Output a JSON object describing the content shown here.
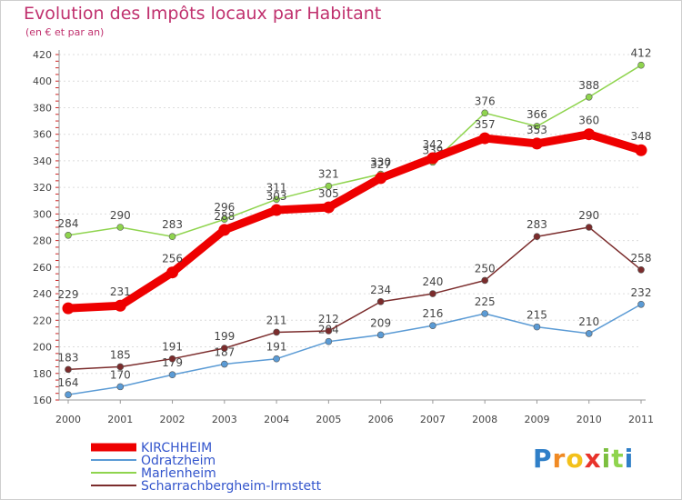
{
  "header": {
    "title": "Evolution des Impôts locaux par Habitant",
    "subtitle": "(en € et par an)"
  },
  "logo": {
    "letters": [
      "P",
      "r",
      "o",
      "x",
      "i",
      "t",
      "i"
    ]
  },
  "chart_data": {
    "type": "line",
    "title": "Evolution des Impôts locaux par Habitant",
    "subtitle": "(en € et par an)",
    "xlabel": "",
    "ylabel": "",
    "ylim": [
      160,
      420
    ],
    "yticks": [
      "160",
      "180",
      "200",
      "220",
      "240",
      "260",
      "280",
      "300",
      "320",
      "340",
      "360",
      "380",
      "400",
      "420"
    ],
    "categories": [
      "2000",
      "2001",
      "2002",
      "2003",
      "2004",
      "2005",
      "2006",
      "2007",
      "2008",
      "2009",
      "2010",
      "2011"
    ],
    "legend_position": "bottom-left",
    "series": [
      {
        "name": "KIRCHHEIM",
        "color": "#ee0000",
        "emphasis": true,
        "values": [
          229,
          231,
          256,
          288,
          303,
          305,
          327,
          342,
          357,
          353,
          360,
          348
        ],
        "labels": [
          "229",
          "231",
          "256",
          "288",
          "303",
          "305",
          "327",
          "342",
          "357",
          "353",
          "360",
          "348"
        ]
      },
      {
        "name": "Odratzheim",
        "color": "#5b9bd5",
        "emphasis": false,
        "values": [
          164,
          170,
          179,
          187,
          191,
          204,
          209,
          216,
          225,
          215,
          210,
          232
        ],
        "labels": [
          "164",
          "170",
          "179",
          "187",
          "191",
          "204",
          "209",
          "216",
          "225",
          "215",
          "210",
          "232"
        ]
      },
      {
        "name": "Marlenheim",
        "color": "#8fd44e",
        "emphasis": false,
        "values": [
          284,
          290,
          283,
          296,
          311,
          321,
          330,
          339,
          376,
          366,
          388,
          412
        ],
        "labels": [
          "284",
          "290",
          "283",
          "296",
          "311",
          "321",
          "330",
          "339",
          "376",
          "366",
          "388",
          "412"
        ]
      },
      {
        "name": "Scharrachbergheim-Irmstett",
        "color": "#7b2c2c",
        "emphasis": false,
        "values": [
          183,
          185,
          191,
          199,
          211,
          212,
          234,
          240,
          250,
          283,
          290,
          258
        ],
        "labels": [
          "183",
          "185",
          "191",
          "199",
          "211",
          "212",
          "234",
          "240",
          "250",
          "283",
          "290",
          "258"
        ]
      }
    ]
  }
}
